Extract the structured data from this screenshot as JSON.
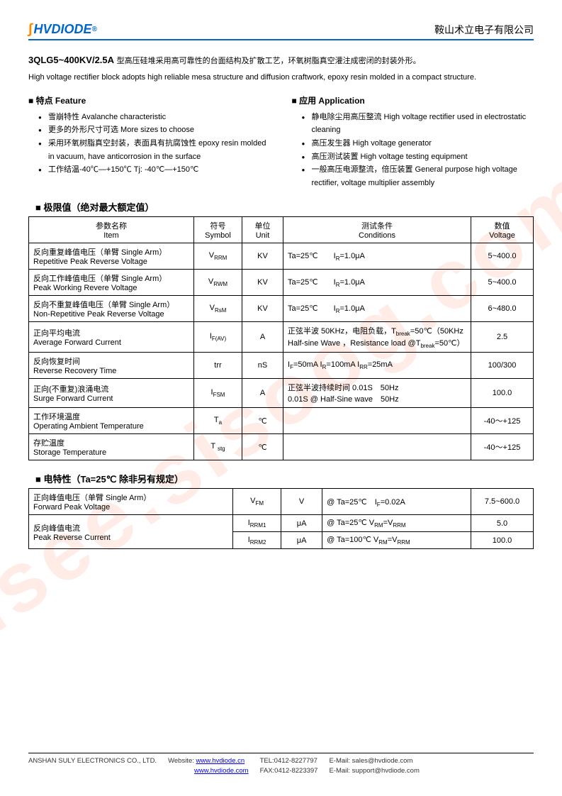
{
  "header": {
    "logo_text": "HVDIODE",
    "registered": "®",
    "company_cn": "鞍山术立电子有限公司"
  },
  "watermark": "isee.sisoog.com",
  "product": {
    "code": "3QLG5~400KV/2.5A",
    "desc_cn": "型高压硅堆采用高可靠性的台面结构及扩散工艺，环氧树脂真空灌注成密闭的封装外形。",
    "desc_en": "High voltage rectifier block adopts high reliable mesa structure and diffusion craftwork, epoxy resin molded in a compact structure."
  },
  "features": {
    "title": "特点  Feature",
    "items": [
      "雪崩特性  Avalanche characteristic",
      "更多的外形尺寸可选  More sizes to choose",
      "采用环氧树脂真空封装，表面具有抗腐蚀性  epoxy resin molded in vacuum, have anticorrosion in the surface",
      "工作结温-40℃—+150℃   Tj: -40℃—+150℃"
    ]
  },
  "applications": {
    "title": "应用 Application",
    "items": [
      "静电除尘用高压整流 High voltage rectifier used in electrostatic cleaning",
      "高压发生器  High voltage generator",
      "高压测试装置  High voltage testing equipment",
      "一般高压电源整流，倍压装置 General purpose high voltage rectifier, voltage multiplier assembly"
    ]
  },
  "limits_table": {
    "title": "极限值（绝对最大额定值）",
    "headers": {
      "item": "参数名称\nItem",
      "symbol": "符号\nSymbol",
      "unit": "单位\nUnit",
      "conditions": "测试条件\nConditions",
      "value": "数值\nVoltage"
    },
    "rows": [
      {
        "item": "反向重复峰值电压（单臂 Single Arm）\nRepetitive Peak Reverse Voltage",
        "symbol": "V<sub>RRM</sub>",
        "unit": "KV",
        "cond": "Ta=25℃　　I<sub>R</sub>=1.0μA",
        "val": "5~400.0"
      },
      {
        "item": "反向工作峰值电压（单臂 Single Arm）\nPeak Working Revere Voltage",
        "symbol": "V<sub>RWM</sub>",
        "unit": "KV",
        "cond": "Ta=25℃　　I<sub>R</sub>=1.0μA",
        "val": "5~400.0"
      },
      {
        "item": "反向不重复峰值电压（单臂 Single Arm）\nNon-Repetitive Peak Reverse Voltage",
        "symbol": "V<sub>RsM</sub>",
        "unit": "KV",
        "cond": "Ta=25℃　　I<sub>R</sub>=1.0μA",
        "val": "6~480.0"
      },
      {
        "item": "正向平均电流\nAverage Forward Current",
        "symbol": "I<sub>F(AV)</sub>",
        "unit": "A",
        "cond": "正弦半波 50KHz，电阻负载，T<sub>break</sub>=50℃（50KHz Half-sine Wave ，Resistance load @T<sub>break</sub>=50℃）",
        "val": "2.5"
      },
      {
        "item": "反向恢复时间\nReverse Recovery Time",
        "symbol": "trr",
        "unit": "nS",
        "cond": "I<sub>F</sub>=50mA   I<sub>R</sub>=100mA   I<sub>RR</sub>=25mA",
        "val": "100/300"
      },
      {
        "item": "正向(不重复)浪涌电流\nSurge Forward Current",
        "symbol": "I<sub>FSM</sub>",
        "unit": "A",
        "cond": "正弦半波持续时间 0.01S　50Hz\n0.01S @ Half-Sine wave　50Hz",
        "val": "100.0"
      },
      {
        "item": "工作环境温度\nOperating Ambient Temperature",
        "symbol": "T<sub>a</sub>",
        "unit": "℃",
        "cond": "",
        "val": "-40～+125"
      },
      {
        "item": "存贮温度\nStorage Temperature",
        "symbol": "T <sub>stg</sub>",
        "unit": "℃",
        "cond": "",
        "val": "-40～+125"
      }
    ]
  },
  "elec_table": {
    "title": "电特性（Ta=25℃  除非另有规定）",
    "rows": [
      {
        "item": "正向峰值电压（单臂 Single Arm）\nForward Peak Voltage",
        "symbol": "V<sub>FM</sub>",
        "unit": "V",
        "cond": "@ Ta=25℃　I<sub>F</sub>=0.02A",
        "val": "7.5~600.0",
        "rowspan": 1
      },
      {
        "item": "反向峰值电流\nPeak Reverse Current",
        "symbol": "I<sub>RRM1</sub>",
        "unit": "μA",
        "cond": "@ Ta=25℃ V<sub>RM</sub>=V<sub>RRM</sub>",
        "val": "5.0",
        "rowspan": 2
      },
      {
        "item": "",
        "symbol": "I<sub>RRM2</sub>",
        "unit": "μA",
        "cond": "@ Ta=100℃ V<sub>RM</sub>=V<sub>RRM</sub>",
        "val": "100.0",
        "rowspan": 0
      }
    ]
  },
  "footer": {
    "company": "ANSHAN SULY ELECTRONICS CO., LTD.",
    "website_label": "Website:",
    "url1": "www.hvdiode.cn",
    "url2": "www.hvdiode.com",
    "tel": "TEL:0412-8227797",
    "fax": "FAX:0412-8223397",
    "email_label": "E-Mail:",
    "email1": "sales@hvdiode.com",
    "email2": "support@hvdiode.com"
  }
}
